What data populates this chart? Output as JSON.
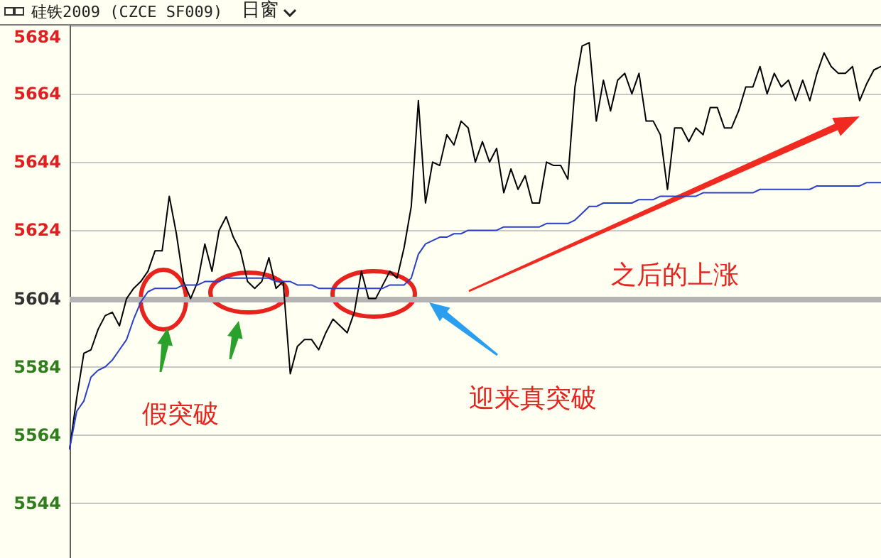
{
  "chart_data": {
    "type": "line",
    "title": "硅铁2009 (CZCE SF009)",
    "subtitle": "日窗",
    "categories": [
      null,
      null,
      null,
      null,
      null,
      null,
      null,
      null,
      null,
      null,
      null,
      null,
      null,
      null,
      null,
      null,
      null,
      null,
      null,
      null,
      null,
      null,
      null,
      null,
      null,
      null,
      null,
      null,
      null,
      null,
      null,
      null,
      null,
      null,
      null,
      null,
      null,
      null,
      null,
      null,
      null,
      null,
      null,
      null,
      null,
      null,
      null,
      null,
      null,
      null,
      null,
      null,
      null,
      null,
      null,
      null,
      null,
      null,
      null,
      null,
      null,
      null,
      null,
      null,
      null,
      null,
      null,
      null,
      null,
      null,
      null,
      null,
      null,
      null,
      null,
      null,
      null,
      null,
      null,
      null,
      null,
      null,
      null,
      null,
      null,
      null,
      null,
      null,
      null,
      null,
      null,
      null,
      null,
      null,
      null,
      null,
      null,
      null,
      null,
      null,
      null,
      null,
      null,
      null,
      null,
      null,
      null,
      null,
      null,
      null,
      null,
      null,
      null,
      null,
      null
    ],
    "series": [
      {
        "color": "#000000",
        "values": [
          5560,
          5575,
          5588,
          5589,
          5595,
          5599,
          5600,
          5596,
          5604,
          5607,
          5609,
          5612,
          5618,
          5618,
          5634,
          5623,
          5609,
          5604,
          5609,
          5620,
          5612,
          5624,
          5628,
          5622,
          5618,
          5609,
          5607,
          5609,
          5616,
          5607,
          5609,
          5582,
          5590,
          5592,
          5592,
          5589,
          5594,
          5598,
          5596,
          5594,
          5600,
          5612,
          5604,
          5604,
          5608,
          5612,
          5610,
          5619,
          5631,
          5662,
          5632,
          5644,
          5643,
          5652,
          5649,
          5656,
          5654,
          5644,
          5650,
          5644,
          5648,
          5635,
          5642,
          5636,
          5640,
          5632,
          5632,
          5644,
          5643,
          5643,
          5639,
          5666,
          5678,
          5679,
          5656,
          5668,
          5659,
          5668,
          5670,
          5664,
          5670,
          5656,
          5656,
          5652,
          5636,
          5654,
          5654,
          5650,
          5654,
          5652,
          5660,
          5660,
          5654,
          5654,
          5659,
          5666,
          5666,
          5672,
          5664,
          5670,
          5666,
          5668,
          5662,
          5668,
          5662,
          5670,
          5676,
          5672,
          5670,
          5670,
          5672,
          5662,
          5667,
          5671,
          5672
        ]
      },
      {
        "color": "#2a3fc8",
        "values": [
          5560,
          5571,
          5574,
          5581,
          5583,
          5584,
          5586,
          5589,
          5592,
          5598,
          5603,
          5606,
          5607,
          5607,
          5607,
          5607,
          5608,
          5608,
          5608,
          5609,
          5609,
          5609,
          5610,
          5610,
          5610,
          5610,
          5610,
          5610,
          5610,
          5609,
          5609,
          5609,
          5608,
          5608,
          5608,
          5607,
          5607,
          5607,
          5607,
          5607,
          5607,
          5607,
          5607,
          5607,
          5607,
          5608,
          5608,
          5608,
          5610,
          5617,
          5620,
          5621,
          5622,
          5622,
          5623,
          5623,
          5624,
          5624,
          5624,
          5624,
          5624,
          5625,
          5625,
          5625,
          5625,
          5625,
          5625,
          5626,
          5626,
          5626,
          5626,
          5627,
          5629,
          5631,
          5631,
          5632,
          5632,
          5632,
          5632,
          5632,
          5633,
          5633,
          5633,
          5634,
          5634,
          5634,
          5634,
          5634,
          5634,
          5635,
          5635,
          5635,
          5635,
          5635,
          5635,
          5635,
          5635,
          5636,
          5636,
          5636,
          5636,
          5636,
          5636,
          5636,
          5636,
          5637,
          5637,
          5637,
          5637,
          5637,
          5637,
          5637,
          5638,
          5638,
          5638
        ]
      }
    ],
    "ylim": [
      5528,
      5684
    ],
    "yticks": [
      5544,
      5564,
      5584,
      5604,
      5624,
      5644,
      5664,
      5684
    ],
    "grid": "y",
    "line_style": "solid",
    "tick_labels": "y",
    "ref_lines": [
      {
        "axis": "y",
        "value": 5604,
        "color": "#b4b4b4"
      }
    ],
    "annotations": [
      "假突破",
      "迎来真突破",
      "之后的上涨"
    ]
  }
}
